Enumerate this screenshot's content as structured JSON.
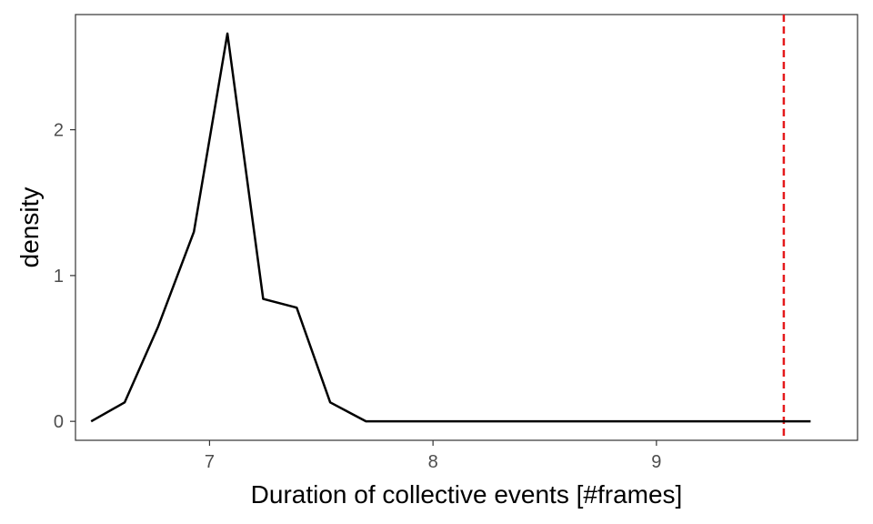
{
  "chart_data": {
    "type": "line",
    "title": "",
    "xlabel": "Duration of collective events [#frames]",
    "ylabel": "density",
    "xlim": [
      6.4,
      9.9
    ],
    "ylim": [
      -0.13,
      2.79
    ],
    "x_ticks": [
      7,
      8,
      9
    ],
    "y_ticks": [
      0,
      1,
      2
    ],
    "grid": false,
    "legend": "none",
    "series": [
      {
        "color": "#000000",
        "points": [
          {
            "x": 6.47,
            "y": 0.0
          },
          {
            "x": 6.62,
            "y": 0.13
          },
          {
            "x": 6.77,
            "y": 0.65
          },
          {
            "x": 6.93,
            "y": 1.3
          },
          {
            "x": 7.08,
            "y": 2.66
          },
          {
            "x": 7.24,
            "y": 0.84
          },
          {
            "x": 7.39,
            "y": 0.78
          },
          {
            "x": 7.54,
            "y": 0.13
          },
          {
            "x": 7.7,
            "y": 0.0
          },
          {
            "x": 9.69,
            "y": 0.0
          }
        ]
      }
    ],
    "reference_lines": [
      {
        "orientation": "vertical",
        "x": 9.57,
        "color": "#e41a1c",
        "style": "dashed"
      }
    ]
  }
}
